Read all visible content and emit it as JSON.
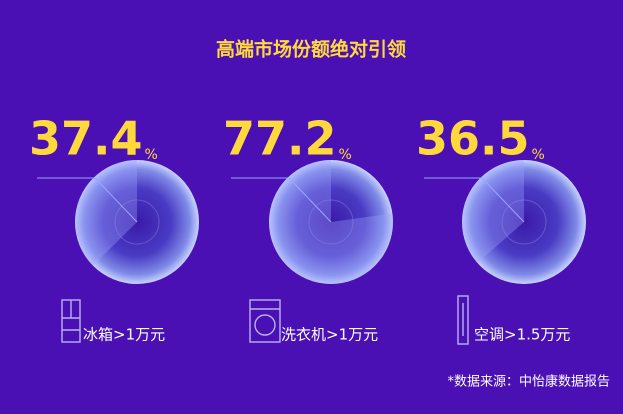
{
  "title": "高端市场份额绝对引领",
  "unit": "%",
  "source": "*数据来源：中怡康数据报告",
  "chart_data": [
    {
      "type": "pie",
      "title": "冰箱>1万元",
      "values": [
        37.4
      ],
      "color": "#9fa4ff"
    },
    {
      "type": "pie",
      "title": "洗衣机>1万元",
      "values": [
        77.2
      ],
      "color": "#9fa4ff"
    },
    {
      "type": "pie",
      "title": "空调>1.5万元",
      "values": [
        36.5
      ],
      "color": "#9fa4ff"
    }
  ]
}
